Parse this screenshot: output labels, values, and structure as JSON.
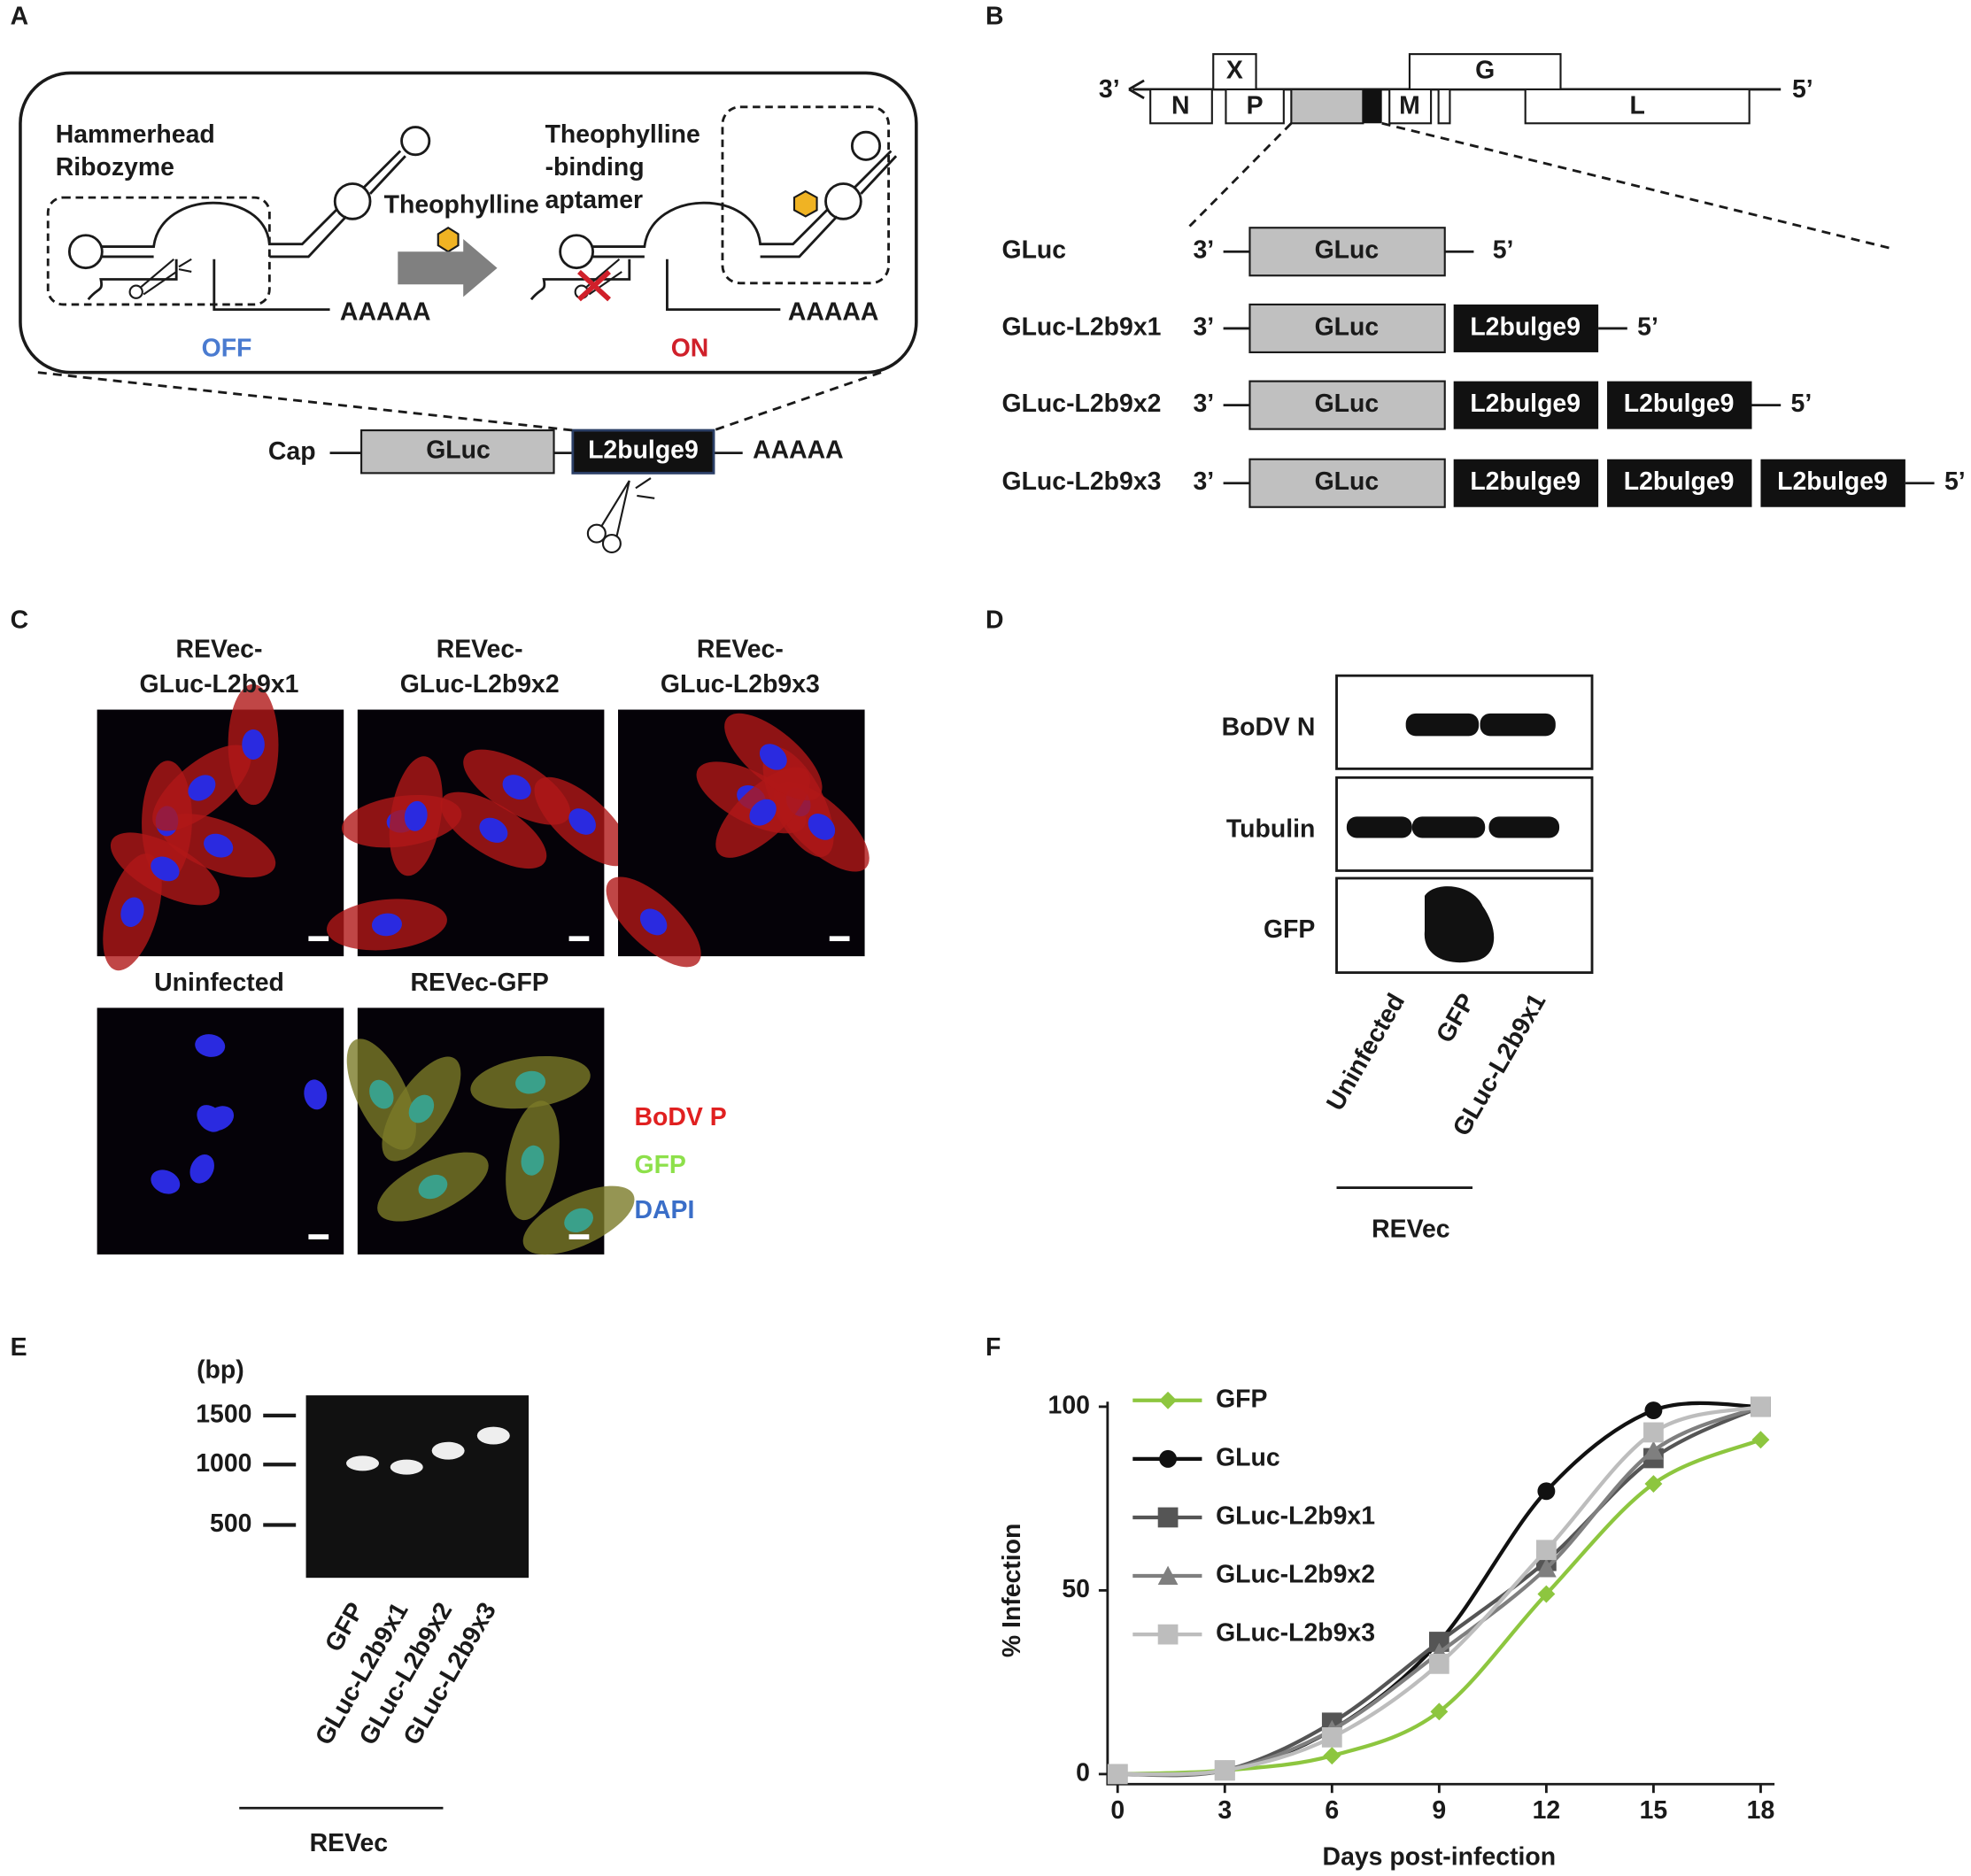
{
  "panels": {
    "a": {
      "label": "A",
      "left_title": [
        "Hammerhead",
        "Ribozyme"
      ],
      "arrow_label": "Theophylline",
      "right_title": [
        "Theophylline",
        "-binding",
        "aptamer"
      ],
      "poly_a": "AAAAA",
      "off": "OFF",
      "on": "ON",
      "construct": [
        "Cap",
        "GLuc",
        "L2bulge9",
        "AAAAA"
      ]
    },
    "b": {
      "label": "B",
      "three_prime": "3’",
      "five_prime": "5’",
      "genes": [
        "N",
        "P",
        "X",
        "M",
        "G",
        "L"
      ],
      "constructs": [
        "GLuc",
        "GLuc-L2b9x1",
        "GLuc-L2b9x2",
        "GLuc-L2b9x3"
      ],
      "box_gluc": "GLuc",
      "box_aptamer": "L2bulge9"
    },
    "c": {
      "label": "C",
      "titles": [
        [
          "REVec-",
          "GLuc-L2b9x1"
        ],
        [
          "REVec-",
          "GLuc-L2b9x2"
        ],
        [
          "REVec-",
          "GLuc-L2b9x3"
        ]
      ],
      "controls": [
        "Uninfected",
        "REVec-GFP"
      ],
      "legend": [
        "BoDV P",
        "GFP",
        "DAPI"
      ]
    },
    "d": {
      "label": "D",
      "rows": [
        "BoDV N",
        "Tubulin",
        "GFP"
      ],
      "lanes": [
        "Uninfected",
        "GFP",
        "GLuc-L2b9x1"
      ],
      "group": "REVec"
    },
    "e": {
      "label": "E",
      "unit": "(bp)",
      "markers": [
        "1500",
        "1000",
        "500"
      ],
      "lanes": [
        "GFP",
        "GLuc-L2b9x1",
        "GLuc-L2b9x2",
        "GLuc-L2b9x3"
      ],
      "group": "REVec"
    },
    "f": {
      "label": "F"
    }
  },
  "chart_data": {
    "type": "line",
    "x_label": "Days post-infection",
    "y_label": "% Infection",
    "x": [
      0,
      3,
      6,
      9,
      12,
      15,
      18
    ],
    "xlim": [
      0,
      18
    ],
    "xticks": [
      0,
      3,
      6,
      9,
      12,
      15,
      18
    ],
    "ylim": [
      0,
      100
    ],
    "yticks": [
      0,
      50,
      100
    ],
    "legend": "upper left",
    "smooth": true,
    "series": [
      {
        "name": "GFP",
        "color": "#8dc63f",
        "marker": "diamond",
        "values": [
          0,
          1,
          5,
          17,
          49,
          79,
          91
        ]
      },
      {
        "name": "GLuc",
        "color": "#111111",
        "marker": "circle",
        "values": [
          0,
          1,
          12,
          36,
          77,
          99,
          100
        ]
      },
      {
        "name": "GLuc-L2b9x1",
        "color": "#555555",
        "marker": "square",
        "values": [
          0,
          1,
          14,
          36,
          58,
          86,
          100
        ]
      },
      {
        "name": "GLuc-L2b9x2",
        "color": "#7f7f7f",
        "marker": "triangle",
        "values": [
          0,
          1,
          12,
          33,
          56,
          88,
          100
        ]
      },
      {
        "name": "GLuc-L2b9x3",
        "color": "#bdbdbd",
        "marker": "square",
        "values": [
          0,
          1,
          10,
          30,
          61,
          93,
          100
        ]
      }
    ]
  }
}
